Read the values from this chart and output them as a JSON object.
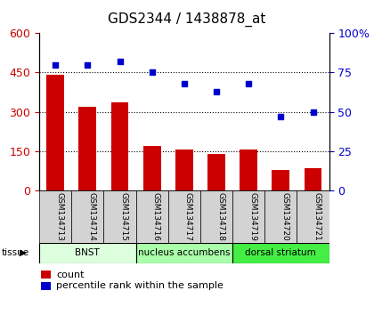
{
  "title": "GDS2344 / 1438878_at",
  "samples": [
    "GSM134713",
    "GSM134714",
    "GSM134715",
    "GSM134716",
    "GSM134717",
    "GSM134718",
    "GSM134719",
    "GSM134720",
    "GSM134721"
  ],
  "counts": [
    440,
    320,
    335,
    170,
    155,
    140,
    155,
    80,
    85
  ],
  "percentiles": [
    80,
    80,
    82,
    75,
    68,
    63,
    68,
    47,
    50
  ],
  "bar_color": "#cc0000",
  "dot_color": "#0000cc",
  "left_ylim": [
    0,
    600
  ],
  "left_yticks": [
    0,
    150,
    300,
    450,
    600
  ],
  "right_ylim": [
    0,
    100
  ],
  "right_yticks": [
    0,
    25,
    50,
    75,
    100
  ],
  "right_yticklabels": [
    "0",
    "25",
    "50",
    "75",
    "100%"
  ],
  "tissue_groups": [
    {
      "label": "BNST",
      "start": 0,
      "end": 3,
      "color": "#ddffdd"
    },
    {
      "label": "nucleus accumbens",
      "start": 3,
      "end": 6,
      "color": "#aaffaa"
    },
    {
      "label": "dorsal striatum",
      "start": 6,
      "end": 9,
      "color": "#44ee44"
    }
  ],
  "tissue_label": "tissue",
  "legend_count_label": "count",
  "legend_pct_label": "percentile rank within the sample",
  "grid_yticks": [
    150,
    300,
    450
  ],
  "title_fontsize": 11,
  "axis_label_color_left": "#cc0000",
  "axis_label_color_right": "#0000cc",
  "tick_fontsize": 9,
  "sample_area_bg": "#d3d3d3"
}
